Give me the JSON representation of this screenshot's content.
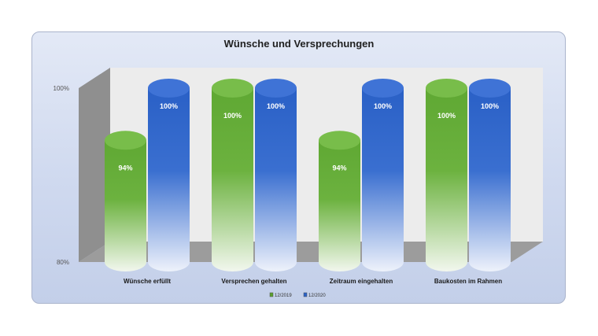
{
  "chart_data": {
    "type": "bar",
    "title": "Wünsche und Versprechungen",
    "categories": [
      "Wünsche erfüllt",
      "Versprechen gehalten",
      "Zeitraum eingehalten",
      "Baukosten im Rahmen"
    ],
    "series": [
      {
        "name": "12/2019",
        "values": [
          94,
          100,
          94,
          100
        ],
        "labels": [
          "94%",
          "100%",
          "94%",
          "100%"
        ],
        "color": "#5aa02c"
      },
      {
        "name": "12/2020",
        "values": [
          100,
          100,
          100,
          100
        ],
        "labels": [
          "100%",
          "100%",
          "100%",
          "100%"
        ],
        "color": "#2a62c8"
      }
    ],
    "yticks": [
      "80%",
      "100%"
    ],
    "ylim": [
      80,
      100
    ],
    "legend": "bottom",
    "grid": false,
    "style": "3d-cylinder"
  }
}
